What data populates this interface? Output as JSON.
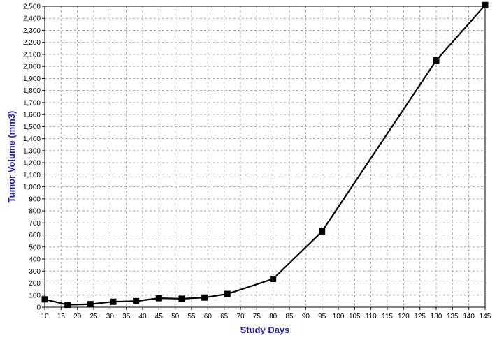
{
  "chart_data": {
    "type": "line",
    "title": "",
    "xlabel": "Study Days",
    "ylabel": "Tumor Volume (mm3)",
    "xlim": [
      10,
      145
    ],
    "ylim": [
      0,
      2500
    ],
    "x_ticks": [
      10,
      15,
      20,
      25,
      30,
      35,
      40,
      45,
      50,
      55,
      60,
      65,
      70,
      75,
      80,
      85,
      90,
      95,
      100,
      105,
      110,
      115,
      120,
      125,
      130,
      135,
      140,
      145
    ],
    "y_ticks": [
      0,
      100,
      200,
      300,
      400,
      500,
      600,
      700,
      800,
      900,
      1000,
      1100,
      1200,
      1300,
      1400,
      1500,
      1600,
      1700,
      1800,
      1900,
      2000,
      2100,
      2200,
      2300,
      2400,
      2500
    ],
    "x_tick_labels": [
      "10",
      "15",
      "20",
      "25",
      "30",
      "35",
      "40",
      "45",
      "50",
      "55",
      "60",
      "65",
      "70",
      "75",
      "80",
      "85",
      "90",
      "95",
      "100",
      "105",
      "110",
      "115",
      "120",
      "125",
      "130",
      "135",
      "140",
      "145"
    ],
    "y_tick_labels": [
      "0",
      "100",
      "200",
      "300",
      "400",
      "500",
      "600",
      "700",
      "800",
      "900",
      "1,000",
      "1,100",
      "1,200",
      "1,300",
      "1,400",
      "1,500",
      "1,600",
      "1,700",
      "1,800",
      "1,900",
      "2,000",
      "2,100",
      "2,200",
      "2,300",
      "2,400",
      "2,500"
    ],
    "grid": true,
    "legend": "none",
    "series": [
      {
        "x": [
          10,
          17,
          24,
          31,
          38,
          45,
          52,
          59,
          66,
          80,
          95,
          130,
          145
        ],
        "y": [
          65,
          20,
          25,
          45,
          50,
          75,
          70,
          80,
          110,
          235,
          630,
          2050,
          2510
        ]
      }
    ],
    "colors": {
      "line": "#000000",
      "marker": "#000000",
      "axis_title": "#1f1fb4",
      "grid": "#a8a8a8"
    }
  }
}
